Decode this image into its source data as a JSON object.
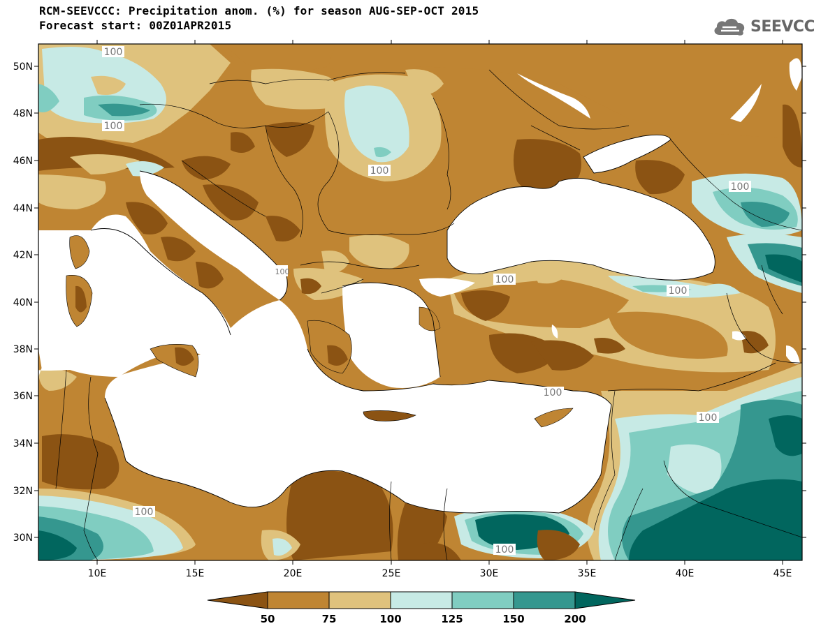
{
  "header": {
    "title": "RCM-SEEVCCC: Precipitation anom. (%) for season AUG-SEP-OCT 2015",
    "subtitle": "Forecast start: 00Z01APR2015",
    "logo_text": "SEEVCCC"
  },
  "map": {
    "lat_ticks": [
      "50N",
      "48N",
      "46N",
      "44N",
      "42N",
      "40N",
      "38N",
      "36N",
      "34N",
      "32N",
      "30N"
    ],
    "lon_ticks": [
      "10E",
      "15E",
      "20E",
      "25E",
      "30E",
      "35E",
      "40E",
      "45E"
    ],
    "contour_labels": [
      "100",
      "100",
      "100",
      "100",
      "100",
      "100",
      "100",
      "100",
      "100",
      "100",
      "100"
    ],
    "colors": {
      "cat_lt50": "#8b5313",
      "cat_50_75": "#bf8533",
      "cat_75_100": "#dfc27d",
      "cat_100_125": "#c7eae5",
      "cat_125_150": "#80cdc1",
      "cat_150_200": "#35978f",
      "cat_gt200": "#01665e",
      "sea": "#ffffff"
    }
  },
  "colorbar": {
    "labels": [
      "50",
      "75",
      "100",
      "125",
      "150",
      "200"
    ]
  }
}
